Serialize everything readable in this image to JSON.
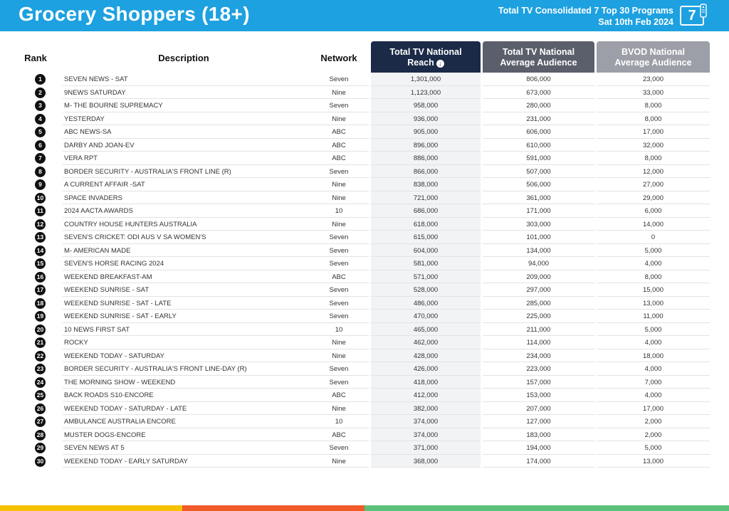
{
  "header": {
    "title": "Grocery Shoppers (18+)",
    "subtitle_line1": "Total TV Consolidated 7 Top 30 Programs",
    "subtitle_line2": "Sat 10th Feb 2024",
    "page_number": "7",
    "bar_color": "#1da1e0"
  },
  "table": {
    "col_rank": "Rank",
    "col_desc": "Description",
    "col_net": "Network",
    "col_reach": "Total TV National Reach",
    "col_avg_line1": "Total TV National",
    "col_avg_line2": "Average Audience",
    "col_bvod_line1": "BVOD National",
    "col_bvod_line2": "Average Audience",
    "sort_icon": "sort-descending-icon",
    "rows": [
      {
        "rank": "1",
        "desc": "SEVEN NEWS - SAT",
        "net": "Seven",
        "reach": "1,301,000",
        "avg": "806,000",
        "bvod": "23,000"
      },
      {
        "rank": "2",
        "desc": "9NEWS SATURDAY",
        "net": "Nine",
        "reach": "1,123,000",
        "avg": "673,000",
        "bvod": "33,000"
      },
      {
        "rank": "3",
        "desc": "M- THE BOURNE SUPREMACY",
        "net": "Seven",
        "reach": "958,000",
        "avg": "280,000",
        "bvod": "8,000"
      },
      {
        "rank": "4",
        "desc": "YESTERDAY",
        "net": "Nine",
        "reach": "936,000",
        "avg": "231,000",
        "bvod": "8,000"
      },
      {
        "rank": "5",
        "desc": "ABC NEWS-SA",
        "net": "ABC",
        "reach": "905,000",
        "avg": "606,000",
        "bvod": "17,000"
      },
      {
        "rank": "6",
        "desc": "DARBY AND JOAN-EV",
        "net": "ABC",
        "reach": "896,000",
        "avg": "610,000",
        "bvod": "32,000"
      },
      {
        "rank": "7",
        "desc": "VERA RPT",
        "net": "ABC",
        "reach": "886,000",
        "avg": "591,000",
        "bvod": "8,000"
      },
      {
        "rank": "8",
        "desc": "BORDER SECURITY - AUSTRALIA'S FRONT LINE (R)",
        "net": "Seven",
        "reach": "866,000",
        "avg": "507,000",
        "bvod": "12,000"
      },
      {
        "rank": "9",
        "desc": "A CURRENT AFFAIR -SAT",
        "net": "Nine",
        "reach": "838,000",
        "avg": "506,000",
        "bvod": "27,000"
      },
      {
        "rank": "10",
        "desc": "SPACE INVADERS",
        "net": "Nine",
        "reach": "721,000",
        "avg": "361,000",
        "bvod": "29,000"
      },
      {
        "rank": "11",
        "desc": "2024 AACTA AWARDS",
        "net": "10",
        "reach": "686,000",
        "avg": "171,000",
        "bvod": "6,000"
      },
      {
        "rank": "12",
        "desc": "COUNTRY HOUSE HUNTERS AUSTRALIA",
        "net": "Nine",
        "reach": "618,000",
        "avg": "303,000",
        "bvod": "14,000"
      },
      {
        "rank": "13",
        "desc": "SEVEN'S CRICKET: ODI AUS V SA WOMEN'S",
        "net": "Seven",
        "reach": "615,000",
        "avg": "101,000",
        "bvod": "0"
      },
      {
        "rank": "14",
        "desc": "M- AMERICAN MADE",
        "net": "Seven",
        "reach": "604,000",
        "avg": "134,000",
        "bvod": "5,000"
      },
      {
        "rank": "15",
        "desc": "SEVEN'S HORSE RACING 2024",
        "net": "Seven",
        "reach": "581,000",
        "avg": "94,000",
        "bvod": "4,000"
      },
      {
        "rank": "16",
        "desc": "WEEKEND BREAKFAST-AM",
        "net": "ABC",
        "reach": "571,000",
        "avg": "209,000",
        "bvod": "8,000"
      },
      {
        "rank": "17",
        "desc": "WEEKEND SUNRISE - SAT",
        "net": "Seven",
        "reach": "528,000",
        "avg": "297,000",
        "bvod": "15,000"
      },
      {
        "rank": "18",
        "desc": "WEEKEND SUNRISE - SAT - LATE",
        "net": "Seven",
        "reach": "486,000",
        "avg": "285,000",
        "bvod": "13,000"
      },
      {
        "rank": "19",
        "desc": "WEEKEND SUNRISE - SAT - EARLY",
        "net": "Seven",
        "reach": "470,000",
        "avg": "225,000",
        "bvod": "11,000"
      },
      {
        "rank": "20",
        "desc": "10 NEWS FIRST SAT",
        "net": "10",
        "reach": "465,000",
        "avg": "211,000",
        "bvod": "5,000"
      },
      {
        "rank": "21",
        "desc": "ROCKY",
        "net": "Nine",
        "reach": "462,000",
        "avg": "114,000",
        "bvod": "4,000"
      },
      {
        "rank": "22",
        "desc": "WEEKEND TODAY - SATURDAY",
        "net": "Nine",
        "reach": "428,000",
        "avg": "234,000",
        "bvod": "18,000"
      },
      {
        "rank": "23",
        "desc": "BORDER SECURITY - AUSTRALIA'S FRONT LINE-DAY (R)",
        "net": "Seven",
        "reach": "426,000",
        "avg": "223,000",
        "bvod": "4,000"
      },
      {
        "rank": "24",
        "desc": "THE MORNING SHOW - WEEKEND",
        "net": "Seven",
        "reach": "418,000",
        "avg": "157,000",
        "bvod": "7,000"
      },
      {
        "rank": "25",
        "desc": "BACK ROADS S10-ENCORE",
        "net": "ABC",
        "reach": "412,000",
        "avg": "153,000",
        "bvod": "4,000"
      },
      {
        "rank": "26",
        "desc": "WEEKEND TODAY - SATURDAY - LATE",
        "net": "Nine",
        "reach": "382,000",
        "avg": "207,000",
        "bvod": "17,000"
      },
      {
        "rank": "27",
        "desc": "AMBULANCE AUSTRALIA ENCORE",
        "net": "10",
        "reach": "374,000",
        "avg": "127,000",
        "bvod": "2,000"
      },
      {
        "rank": "28",
        "desc": "MUSTER DOGS-ENCORE",
        "net": "ABC",
        "reach": "374,000",
        "avg": "183,000",
        "bvod": "2,000"
      },
      {
        "rank": "29",
        "desc": "SEVEN NEWS AT 5",
        "net": "Seven",
        "reach": "371,000",
        "avg": "194,000",
        "bvod": "5,000"
      },
      {
        "rank": "30",
        "desc": "WEEKEND TODAY - EARLY SATURDAY",
        "net": "Nine",
        "reach": "368,000",
        "avg": "174,000",
        "bvod": "13,000"
      }
    ]
  }
}
